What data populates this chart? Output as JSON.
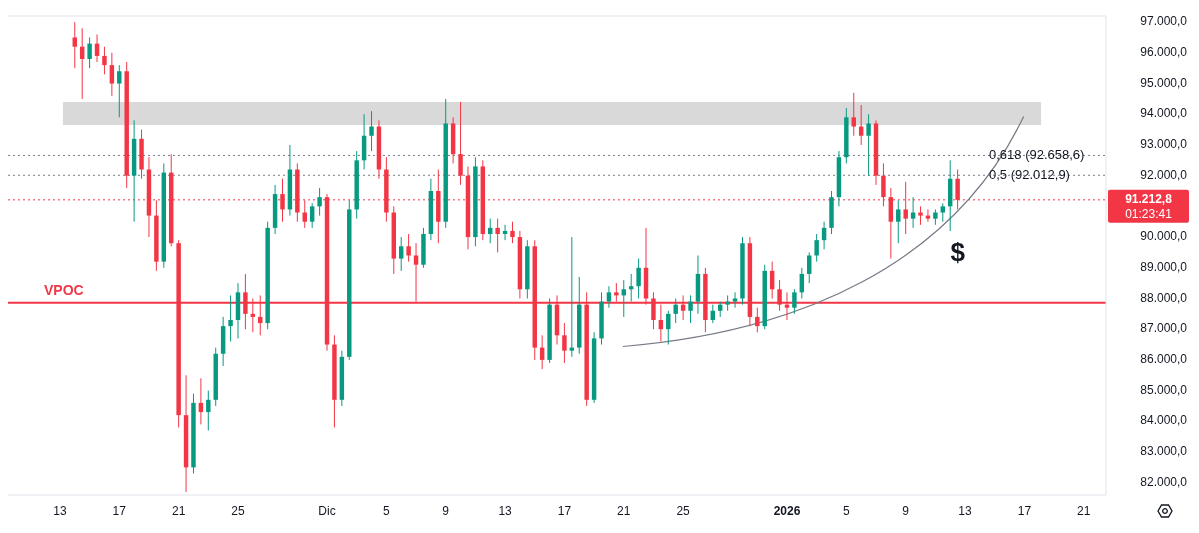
{
  "chart_data": {
    "type": "candlestick",
    "x": [
      "2025-11-14T00:00",
      "2025-11-14T12:00",
      "2025-11-15T00:00",
      "2025-11-15T12:00",
      "2025-11-16T00:00",
      "2025-11-16T12:00",
      "2025-11-17T00:00",
      "2025-11-17T12:00",
      "2025-11-18T00:00",
      "2025-11-18T12:00",
      "2025-11-19T00:00",
      "2025-11-19T12:00",
      "2025-11-20T00:00",
      "2025-11-20T12:00",
      "2025-11-21T00:00",
      "2025-11-21T12:00",
      "2025-11-22T00:00",
      "2025-11-22T12:00",
      "2025-11-23T00:00",
      "2025-11-23T12:00",
      "2025-11-24T00:00",
      "2025-11-24T12:00",
      "2025-11-25T00:00",
      "2025-11-25T12:00",
      "2025-11-26T00:00",
      "2025-11-26T12:00",
      "2025-11-27T00:00",
      "2025-11-27T12:00",
      "2025-11-28T00:00",
      "2025-11-28T12:00",
      "2025-11-29T00:00",
      "2025-11-29T12:00",
      "2025-11-30T00:00",
      "2025-11-30T12:00",
      "2025-12-01T00:00",
      "2025-12-01T12:00",
      "2025-12-02T00:00",
      "2025-12-02T12:00",
      "2025-12-03T00:00",
      "2025-12-03T12:00",
      "2025-12-04T00:00",
      "2025-12-04T12:00",
      "2025-12-05T00:00",
      "2025-12-05T12:00",
      "2025-12-06T00:00",
      "2025-12-06T12:00",
      "2025-12-07T00:00",
      "2025-12-07T12:00",
      "2025-12-08T00:00",
      "2025-12-08T12:00",
      "2025-12-09T00:00",
      "2025-12-09T12:00",
      "2025-12-10T00:00",
      "2025-12-10T12:00",
      "2025-12-11T00:00",
      "2025-12-11T12:00",
      "2025-12-12T00:00",
      "2025-12-12T12:00",
      "2025-12-13T00:00",
      "2025-12-13T12:00",
      "2025-12-14T00:00",
      "2025-12-14T12:00",
      "2025-12-15T00:00",
      "2025-12-15T12:00",
      "2025-12-16T00:00",
      "2025-12-16T12:00",
      "2025-12-17T00:00",
      "2025-12-17T12:00",
      "2025-12-18T00:00",
      "2025-12-18T12:00",
      "2025-12-19T00:00",
      "2025-12-19T12:00",
      "2025-12-20T00:00",
      "2025-12-20T12:00",
      "2025-12-21T00:00",
      "2025-12-21T12:00",
      "2025-12-22T00:00",
      "2025-12-22T12:00",
      "2025-12-23T00:00",
      "2025-12-23T12:00",
      "2025-12-24T00:00",
      "2025-12-24T12:00",
      "2025-12-25T00:00",
      "2025-12-25T12:00",
      "2025-12-26T00:00",
      "2025-12-26T12:00",
      "2025-12-27T00:00",
      "2025-12-27T12:00",
      "2025-12-28T00:00",
      "2025-12-28T12:00",
      "2025-12-29T00:00",
      "2025-12-29T12:00",
      "2025-12-30T00:00",
      "2025-12-30T12:00",
      "2025-12-31T00:00",
      "2025-12-31T12:00",
      "2026-01-01T00:00",
      "2026-01-01T12:00",
      "2026-01-02T00:00",
      "2026-01-02T12:00",
      "2026-01-03T00:00",
      "2026-01-03T12:00",
      "2026-01-04T00:00",
      "2026-01-04T12:00",
      "2026-01-05T00:00",
      "2026-01-05T12:00",
      "2026-01-06T00:00",
      "2026-01-06T12:00",
      "2026-01-07T00:00",
      "2026-01-07T12:00",
      "2026-01-08T00:00",
      "2026-01-08T12:00",
      "2026-01-09T00:00",
      "2026-01-09T12:00",
      "2026-01-10T00:00",
      "2026-01-10T12:00",
      "2026-01-11T00:00",
      "2026-01-11T12:00",
      "2026-01-12T00:00",
      "2026-01-12T12:00"
    ],
    "ohlc": [
      [
        96500,
        97000,
        95500,
        96200
      ],
      [
        96200,
        96800,
        94500,
        95800
      ],
      [
        95800,
        96500,
        95500,
        96300
      ],
      [
        96300,
        96600,
        95700,
        95900
      ],
      [
        95900,
        96200,
        95300,
        95600
      ],
      [
        95600,
        96000,
        94600,
        95000
      ],
      [
        95000,
        95600,
        93900,
        95400
      ],
      [
        95400,
        95700,
        91600,
        92000
      ],
      [
        92000,
        93800,
        90500,
        93200
      ],
      [
        93200,
        93500,
        91900,
        92200
      ],
      [
        92200,
        92600,
        90000,
        90700
      ],
      [
        90700,
        91200,
        88900,
        89200
      ],
      [
        89200,
        92400,
        89000,
        92100
      ],
      [
        92100,
        92700,
        89700,
        89800
      ],
      [
        89800,
        89900,
        83800,
        84200
      ],
      [
        84200,
        85500,
        81700,
        82500
      ],
      [
        82500,
        84900,
        82300,
        84600
      ],
      [
        84600,
        85400,
        83900,
        84300
      ],
      [
        84300,
        85000,
        83700,
        84700
      ],
      [
        84700,
        86400,
        84500,
        86200
      ],
      [
        86200,
        87400,
        85800,
        87100
      ],
      [
        87100,
        88100,
        86600,
        87300
      ],
      [
        87300,
        88500,
        86700,
        88200
      ],
      [
        88200,
        88800,
        87000,
        87500
      ],
      [
        87500,
        88000,
        86900,
        87400
      ],
      [
        87400,
        88100,
        86800,
        87200
      ],
      [
        87200,
        90500,
        87000,
        90300
      ],
      [
        90300,
        91700,
        90100,
        91400
      ],
      [
        91400,
        91900,
        90500,
        90900
      ],
      [
        90900,
        93000,
        90700,
        92200
      ],
      [
        92200,
        92400,
        90500,
        90800
      ],
      [
        90800,
        91200,
        90300,
        90500
      ],
      [
        90500,
        91100,
        90300,
        91000
      ],
      [
        91000,
        91600,
        90700,
        91300
      ],
      [
        91300,
        91400,
        86300,
        86500
      ],
      [
        86500,
        86800,
        83800,
        84700
      ],
      [
        84700,
        86300,
        84500,
        86100
      ],
      [
        86100,
        91200,
        86000,
        90900
      ],
      [
        90900,
        92800,
        90600,
        92500
      ],
      [
        92500,
        94000,
        92200,
        93300
      ],
      [
        93300,
        94100,
        92800,
        93600
      ],
      [
        93600,
        93800,
        91900,
        92200
      ],
      [
        92200,
        92600,
        90500,
        90800
      ],
      [
        90800,
        91000,
        88800,
        89300
      ],
      [
        89300,
        90000,
        88900,
        89700
      ],
      [
        89700,
        90100,
        89200,
        89400
      ],
      [
        89400,
        89800,
        87900,
        89100
      ],
      [
        89100,
        90300,
        89000,
        90100
      ],
      [
        90100,
        91900,
        89900,
        91500
      ],
      [
        91500,
        92200,
        89800,
        90500
      ],
      [
        90500,
        94500,
        90300,
        93700
      ],
      [
        93700,
        93900,
        92400,
        92700
      ],
      [
        92700,
        94400,
        91700,
        92000
      ],
      [
        92000,
        92300,
        89600,
        90000
      ],
      [
        90000,
        92600,
        89700,
        92300
      ],
      [
        92300,
        92500,
        89900,
        90100
      ],
      [
        90100,
        90600,
        89800,
        90300
      ],
      [
        90300,
        90600,
        89500,
        90100
      ],
      [
        90100,
        90400,
        89900,
        90200
      ],
      [
        90200,
        90500,
        89800,
        90000
      ],
      [
        90000,
        90200,
        88000,
        88300
      ],
      [
        88300,
        89900,
        88000,
        89700
      ],
      [
        89700,
        89900,
        86000,
        86400
      ],
      [
        86400,
        86800,
        85700,
        86000
      ],
      [
        86000,
        88000,
        85900,
        87800
      ],
      [
        87800,
        88100,
        86500,
        86800
      ],
      [
        86800,
        87200,
        85900,
        86300
      ],
      [
        86300,
        90000,
        86100,
        86400
      ],
      [
        86400,
        88700,
        86200,
        87800
      ],
      [
        87800,
        88200,
        84500,
        84700
      ],
      [
        84700,
        86900,
        84600,
        86700
      ],
      [
        86700,
        88200,
        86500,
        87900
      ],
      [
        87900,
        88400,
        87700,
        88200
      ],
      [
        88200,
        88500,
        87900,
        88100
      ],
      [
        88100,
        88600,
        87400,
        88300
      ],
      [
        88300,
        88800,
        87900,
        88400
      ],
      [
        88400,
        89300,
        88000,
        89000
      ],
      [
        89000,
        90300,
        87800,
        88000
      ],
      [
        88000,
        88200,
        87000,
        87300
      ],
      [
        87300,
        87800,
        86600,
        87000
      ],
      [
        87000,
        87600,
        86500,
        87500
      ],
      [
        87500,
        88000,
        87200,
        87800
      ],
      [
        87800,
        88100,
        87300,
        87600
      ],
      [
        87600,
        88100,
        87200,
        87900
      ],
      [
        87900,
        89400,
        87500,
        88800
      ],
      [
        88800,
        89000,
        86900,
        87300
      ],
      [
        87300,
        87800,
        87200,
        87600
      ],
      [
        87600,
        87900,
        87400,
        87800
      ],
      [
        87800,
        88100,
        87600,
        87900
      ],
      [
        87900,
        88200,
        87700,
        88000
      ],
      [
        88000,
        90000,
        87800,
        89800
      ],
      [
        89800,
        90000,
        87100,
        87400
      ],
      [
        87400,
        87700,
        86900,
        87100
      ],
      [
        87100,
        89100,
        87000,
        88900
      ],
      [
        88900,
        89200,
        88000,
        88300
      ],
      [
        88300,
        88600,
        87600,
        87800
      ],
      [
        87800,
        88200,
        87300,
        87700
      ],
      [
        87700,
        88300,
        87500,
        88200
      ],
      [
        88200,
        89000,
        88000,
        88800
      ],
      [
        88800,
        89500,
        88500,
        89400
      ],
      [
        89400,
        90100,
        89200,
        89900
      ],
      [
        89900,
        90500,
        89600,
        90300
      ],
      [
        90300,
        91500,
        90100,
        91300
      ],
      [
        91300,
        92800,
        91000,
        92600
      ],
      [
        92600,
        94200,
        92400,
        93900
      ],
      [
        93900,
        94700,
        93300,
        93600
      ],
      [
        93600,
        94300,
        93000,
        93300
      ],
      [
        93300,
        94000,
        92000,
        93700
      ],
      [
        93700,
        93800,
        91700,
        92000
      ],
      [
        92000,
        92400,
        91000,
        91300
      ],
      [
        91300,
        91600,
        89300,
        90500
      ],
      [
        90500,
        91200,
        89800,
        90900
      ],
      [
        90900,
        91800,
        90100,
        90600
      ],
      [
        90600,
        91300,
        90300,
        90800
      ],
      [
        90800,
        91000,
        90400,
        90700
      ],
      [
        90700,
        90900,
        90500,
        90600
      ],
      [
        90600,
        90900,
        90400,
        90800
      ],
      [
        90800,
        91100,
        90500,
        91000
      ],
      [
        91000,
        92500,
        90200,
        91900
      ],
      [
        91900,
        92200,
        90900,
        91212.8
      ]
    ],
    "xlim": [
      "2025-11-09T12:00",
      "2026-01-22T12:00"
    ],
    "xticks": [
      {
        "value": "2025-11-13",
        "label": "13"
      },
      {
        "value": "2025-11-17",
        "label": "17"
      },
      {
        "value": "2025-11-21",
        "label": "21"
      },
      {
        "value": "2025-11-25",
        "label": "25"
      },
      {
        "value": "2025-12-01",
        "label": "Dic"
      },
      {
        "value": "2025-12-05",
        "label": "5"
      },
      {
        "value": "2025-12-09",
        "label": "9"
      },
      {
        "value": "2025-12-13",
        "label": "13"
      },
      {
        "value": "2025-12-17",
        "label": "17"
      },
      {
        "value": "2025-12-21",
        "label": "21"
      },
      {
        "value": "2025-12-25",
        "label": "25"
      },
      {
        "value": "2026-01-01",
        "label": "2026"
      },
      {
        "value": "2026-01-05",
        "label": "5"
      },
      {
        "value": "2026-01-09",
        "label": "9"
      },
      {
        "value": "2026-01-13",
        "label": "13"
      },
      {
        "value": "2026-01-17",
        "label": "17"
      },
      {
        "value": "2026-01-21",
        "label": "21"
      }
    ],
    "ylim": [
      81600,
      97200
    ],
    "yticks": [
      {
        "value": 82000,
        "label": "82.000,0"
      },
      {
        "value": 83000,
        "label": "83.000,0"
      },
      {
        "value": 84000,
        "label": "84.000,0"
      },
      {
        "value": 85000,
        "label": "85.000,0"
      },
      {
        "value": 86000,
        "label": "86.000,0"
      },
      {
        "value": 87000,
        "label": "87.000,0"
      },
      {
        "value": 88000,
        "label": "88.000,0"
      },
      {
        "value": 89000,
        "label": "89.000,0"
      },
      {
        "value": 90000,
        "label": "90.000,0"
      },
      {
        "value": 92000,
        "label": "92.000,0"
      },
      {
        "value": 93000,
        "label": "93.000,0"
      },
      {
        "value": 94000,
        "label": "94.000,0"
      },
      {
        "value": 95000,
        "label": "95.000,0"
      },
      {
        "value": 96000,
        "label": "96.000,0"
      },
      {
        "value": 97000,
        "label": "97.000,0"
      }
    ],
    "bands": [
      {
        "axis": "y",
        "from": 93650,
        "to": 94400,
        "color": "#d9d9d9"
      }
    ],
    "ref_lines": [
      {
        "axis": "y",
        "value": 87860,
        "label": "VPOC",
        "color": "#f23645",
        "line_style": "solid"
      },
      {
        "axis": "y",
        "value": 92658.6,
        "label": "0,618 (92.658,6)",
        "color": "#787b86",
        "line_style": "dotted"
      },
      {
        "axis": "y",
        "value": 92012.9,
        "label": "0,5 (92.012,9)",
        "color": "#787b86",
        "line_style": "dotted"
      },
      {
        "axis": "y",
        "value": 91212.8,
        "label": "91.212,8",
        "color": "#f23645",
        "line_style": "dotted"
      }
    ],
    "annotations": [
      "01:23:41",
      "$"
    ],
    "grid": false
  }
}
